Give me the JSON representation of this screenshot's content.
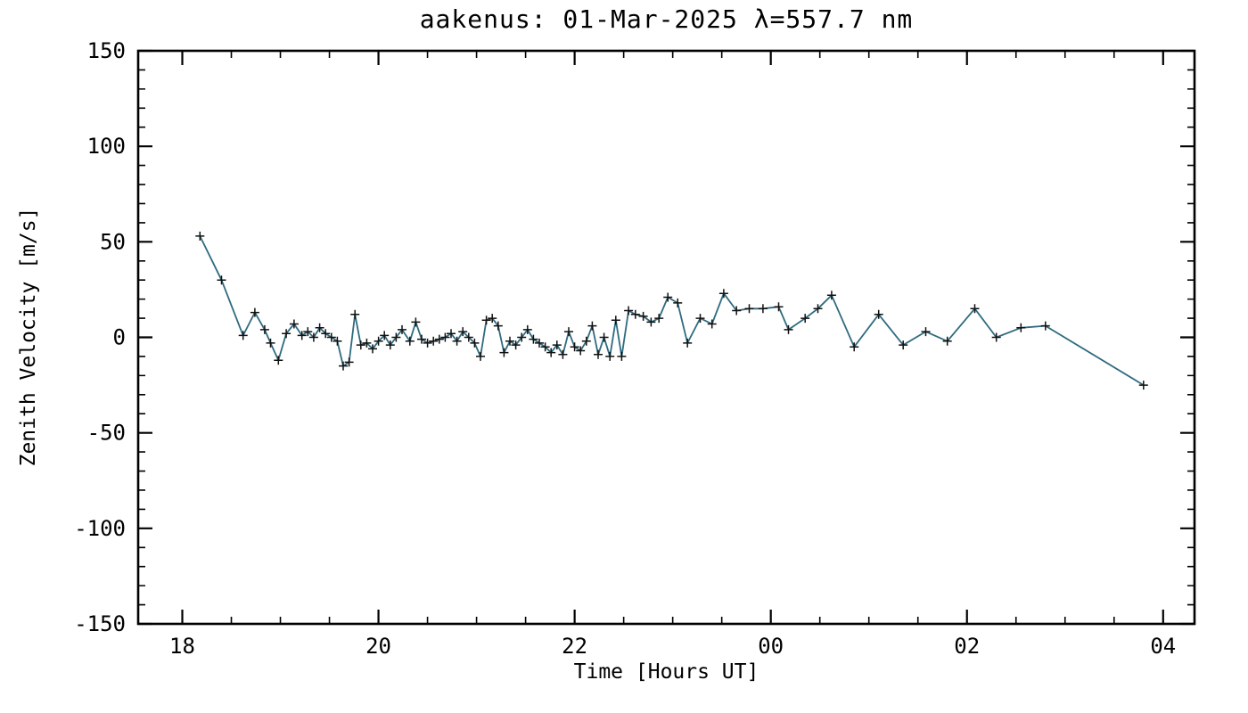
{
  "chart_data": {
    "type": "line",
    "title": "aakenus: 01-Mar-2025 λ=557.7 nm",
    "xlabel": "Time [Hours UT]",
    "ylabel": "Zenith Velocity [m/s]",
    "xlim": [
      17.55,
      28.32
    ],
    "ylim": [
      -150,
      150
    ],
    "x_unit": "hours UT (24=00, 26=02, 28=04 next day)",
    "grid": "off",
    "legend": "none",
    "xticks": [
      {
        "value": 18,
        "label": "18"
      },
      {
        "value": 20,
        "label": "20"
      },
      {
        "value": 22,
        "label": "22"
      },
      {
        "value": 24,
        "label": "00"
      },
      {
        "value": 26,
        "label": "02"
      },
      {
        "value": 28,
        "label": "04"
      }
    ],
    "yticks": [
      {
        "value": -150,
        "label": "-150"
      },
      {
        "value": -100,
        "label": "-100"
      },
      {
        "value": -50,
        "label": "-50"
      },
      {
        "value": 0,
        "label": "0"
      },
      {
        "value": 50,
        "label": "50"
      },
      {
        "value": 100,
        "label": "100"
      },
      {
        "value": 150,
        "label": "150"
      }
    ],
    "x_minor_step": 0.5,
    "y_minor_step": 10,
    "line_color": "#2e6b7e",
    "marker": "plus",
    "marker_color": "#111111",
    "series": [
      {
        "name": "zenith_velocity",
        "points": [
          [
            18.18,
            53
          ],
          [
            18.4,
            30
          ],
          [
            18.62,
            1
          ],
          [
            18.74,
            13
          ],
          [
            18.84,
            4
          ],
          [
            18.9,
            -3
          ],
          [
            18.98,
            -12
          ],
          [
            19.06,
            2
          ],
          [
            19.14,
            7
          ],
          [
            19.22,
            1
          ],
          [
            19.28,
            3
          ],
          [
            19.34,
            0
          ],
          [
            19.4,
            5
          ],
          [
            19.46,
            2
          ],
          [
            19.52,
            0
          ],
          [
            19.58,
            -2
          ],
          [
            19.64,
            -15
          ],
          [
            19.7,
            -13
          ],
          [
            19.76,
            12
          ],
          [
            19.82,
            -4
          ],
          [
            19.88,
            -3
          ],
          [
            19.94,
            -6
          ],
          [
            20.0,
            -2
          ],
          [
            20.06,
            1
          ],
          [
            20.12,
            -4
          ],
          [
            20.18,
            0
          ],
          [
            20.24,
            4
          ],
          [
            20.32,
            -2
          ],
          [
            20.38,
            8
          ],
          [
            20.44,
            -1
          ],
          [
            20.5,
            -3
          ],
          [
            20.56,
            -2
          ],
          [
            20.62,
            -1
          ],
          [
            20.68,
            0
          ],
          [
            20.74,
            2
          ],
          [
            20.8,
            -2
          ],
          [
            20.86,
            3
          ],
          [
            20.92,
            0
          ],
          [
            20.98,
            -3
          ],
          [
            21.04,
            -10
          ],
          [
            21.1,
            9
          ],
          [
            21.16,
            10
          ],
          [
            21.22,
            6
          ],
          [
            21.28,
            -8
          ],
          [
            21.34,
            -2
          ],
          [
            21.4,
            -4
          ],
          [
            21.46,
            0
          ],
          [
            21.52,
            4
          ],
          [
            21.58,
            -1
          ],
          [
            21.64,
            -3
          ],
          [
            21.7,
            -5
          ],
          [
            21.76,
            -8
          ],
          [
            21.82,
            -4
          ],
          [
            21.88,
            -9
          ],
          [
            21.94,
            3
          ],
          [
            22.0,
            -5
          ],
          [
            22.06,
            -7
          ],
          [
            22.12,
            -2
          ],
          [
            22.18,
            6
          ],
          [
            22.24,
            -9
          ],
          [
            22.3,
            0
          ],
          [
            22.36,
            -10
          ],
          [
            22.42,
            9
          ],
          [
            22.48,
            -10
          ],
          [
            22.55,
            14
          ],
          [
            22.62,
            12
          ],
          [
            22.7,
            11
          ],
          [
            22.78,
            8
          ],
          [
            22.86,
            10
          ],
          [
            22.95,
            21
          ],
          [
            23.05,
            18
          ],
          [
            23.15,
            -3
          ],
          [
            23.28,
            10
          ],
          [
            23.4,
            7
          ],
          [
            23.52,
            23
          ],
          [
            23.65,
            14
          ],
          [
            23.78,
            15
          ],
          [
            23.92,
            15
          ],
          [
            24.08,
            16
          ],
          [
            24.18,
            4
          ],
          [
            24.35,
            10
          ],
          [
            24.48,
            15
          ],
          [
            24.62,
            22
          ],
          [
            24.85,
            -5
          ],
          [
            25.1,
            12
          ],
          [
            25.35,
            -4
          ],
          [
            25.58,
            3
          ],
          [
            25.8,
            -2
          ],
          [
            26.08,
            15
          ],
          [
            26.3,
            0
          ],
          [
            26.55,
            5
          ],
          [
            26.8,
            6
          ],
          [
            27.8,
            -25
          ]
        ]
      }
    ]
  }
}
